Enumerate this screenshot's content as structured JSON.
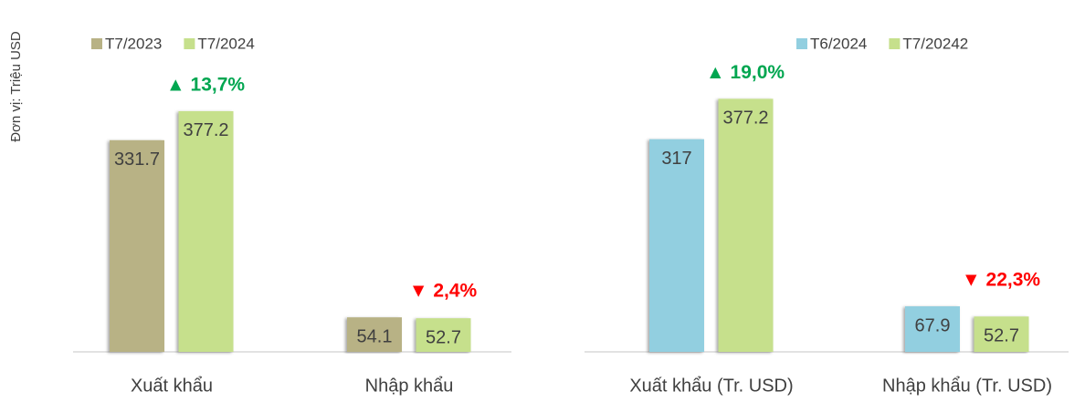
{
  "chart_data": [
    {
      "type": "bar",
      "ylabel": "Đơn vị: Triệu USD",
      "categories": [
        "Xuất khẩu",
        "Nhập khẩu"
      ],
      "series": [
        {
          "name": "T7/2023",
          "color": "#b8b285",
          "values": [
            331.7,
            54.1
          ]
        },
        {
          "name": "T7/2024",
          "color": "#c6e08c",
          "values": [
            377.2,
            52.7
          ]
        }
      ],
      "annotations": [
        "▲ 13,7%",
        "▼ 2,4%"
      ],
      "ylim": [
        0,
        500
      ],
      "legend": "top-left"
    },
    {
      "type": "bar",
      "categories": [
        "Xuất khẩu (Tr. USD)",
        "Nhập khẩu (Tr. USD)"
      ],
      "series": [
        {
          "name": "T6/2024",
          "color": "#92cfe0",
          "values": [
            317.0,
            67.9
          ]
        },
        {
          "name": "T7/20242",
          "color": "#c6e08c",
          "values": [
            377.2,
            52.7
          ]
        }
      ],
      "annotations": [
        "▲ 19,0%",
        "▼ 22,3%"
      ],
      "ylim": [
        0,
        500
      ],
      "legend": "top-right"
    }
  ]
}
